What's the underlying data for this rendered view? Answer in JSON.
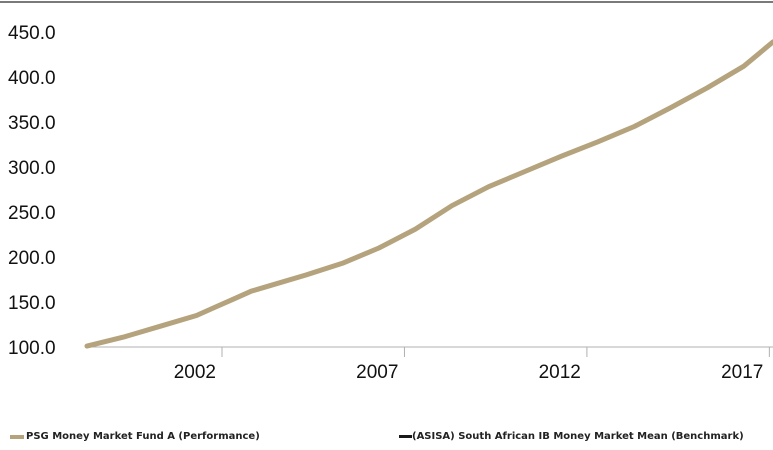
{
  "chart_data": {
    "type": "line",
    "xlim": [
      1999,
      2017.8
    ],
    "ylim": [
      100,
      450
    ],
    "y_ticks": [
      100,
      150,
      200,
      250,
      300,
      350,
      400,
      450
    ],
    "y_tick_labels": [
      "100.0",
      "150.0",
      "200.0",
      "250.0",
      "300.0",
      "350.0",
      "400.0",
      "450.0"
    ],
    "x_ticks": [
      2002,
      2007,
      2012,
      2017
    ],
    "x_tick_labels": [
      "2002",
      "2007",
      "2012",
      "2017"
    ],
    "grid": false,
    "legend_position": "bottom",
    "series": [
      {
        "name": "PSG Money Market Fund A (Performance)",
        "color": "#b4a37d",
        "x": [
          1999.0,
          2000.0,
          2001.0,
          2002.0,
          2002.5,
          2003.0,
          2003.5,
          2004.0,
          2005.0,
          2006.0,
          2007.0,
          2008.0,
          2009.0,
          2010.0,
          2011.0,
          2012.0,
          2013.0,
          2014.0,
          2015.0,
          2016.0,
          2017.0,
          2017.8
        ],
        "y": [
          101,
          111,
          123,
          135,
          144,
          153,
          162,
          168,
          180,
          193,
          210,
          231,
          257,
          278,
          295,
          312,
          328,
          345,
          366,
          388,
          412,
          439
        ]
      },
      {
        "name": "(ASISA) South African IB Money Market Mean (Benchmark)",
        "color": "#1a1a1a",
        "x": [
          1999.0,
          2000.0,
          2001.0,
          2002.0,
          2002.5,
          2003.0,
          2003.5,
          2004.0,
          2005.0,
          2006.0,
          2007.0,
          2008.0,
          2009.0,
          2010.0,
          2011.0,
          2012.0,
          2013.0,
          2014.0,
          2015.0,
          2016.0,
          2017.0,
          2017.8
        ],
        "y": [
          101,
          111,
          123,
          135,
          144,
          153,
          162,
          168,
          180,
          193,
          210,
          231,
          257,
          278,
          295,
          312,
          328,
          345,
          366,
          388,
          412,
          439
        ]
      }
    ]
  }
}
